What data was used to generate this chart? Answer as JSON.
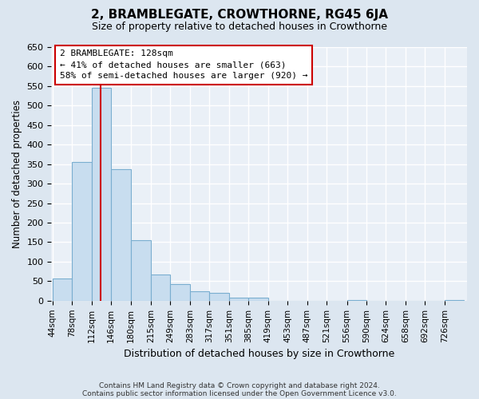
{
  "title": "2, BRAMBLEGATE, CROWTHORNE, RG45 6JA",
  "subtitle": "Size of property relative to detached houses in Crowthorne",
  "xlabel": "Distribution of detached houses by size in Crowthorne",
  "ylabel": "Number of detached properties",
  "footnote1": "Contains HM Land Registry data © Crown copyright and database right 2024.",
  "footnote2": "Contains public sector information licensed under the Open Government Licence v3.0.",
  "bin_labels": [
    "44sqm",
    "78sqm",
    "112sqm",
    "146sqm",
    "180sqm",
    "215sqm",
    "249sqm",
    "283sqm",
    "317sqm",
    "351sqm",
    "385sqm",
    "419sqm",
    "453sqm",
    "487sqm",
    "521sqm",
    "556sqm",
    "590sqm",
    "624sqm",
    "658sqm",
    "692sqm",
    "726sqm"
  ],
  "bar_values": [
    57,
    355,
    545,
    338,
    155,
    68,
    42,
    25,
    20,
    8,
    8,
    0,
    0,
    0,
    0,
    2,
    0,
    0,
    0,
    0,
    2
  ],
  "bar_color": "#c8ddef",
  "bar_edgecolor": "#7aaed0",
  "vline_color": "#cc0000",
  "annotation_title": "2 BRAMBLEGATE: 128sqm",
  "annotation_line1": "← 41% of detached houses are smaller (663)",
  "annotation_line2": "58% of semi-detached houses are larger (920) →",
  "annotation_box_edgecolor": "#cc0000",
  "annotation_box_facecolor": "#ffffff",
  "ylim": [
    0,
    650
  ],
  "yticks": [
    0,
    50,
    100,
    150,
    200,
    250,
    300,
    350,
    400,
    450,
    500,
    550,
    600,
    650
  ],
  "bg_color": "#dce6f0",
  "plot_bg_color": "#eaf0f7",
  "grid_color": "#ffffff",
  "bin_edges": [
    44,
    78,
    112,
    146,
    180,
    215,
    249,
    283,
    317,
    351,
    385,
    419,
    453,
    487,
    521,
    556,
    590,
    624,
    658,
    692,
    726,
    760
  ],
  "vline_xdata": 128
}
